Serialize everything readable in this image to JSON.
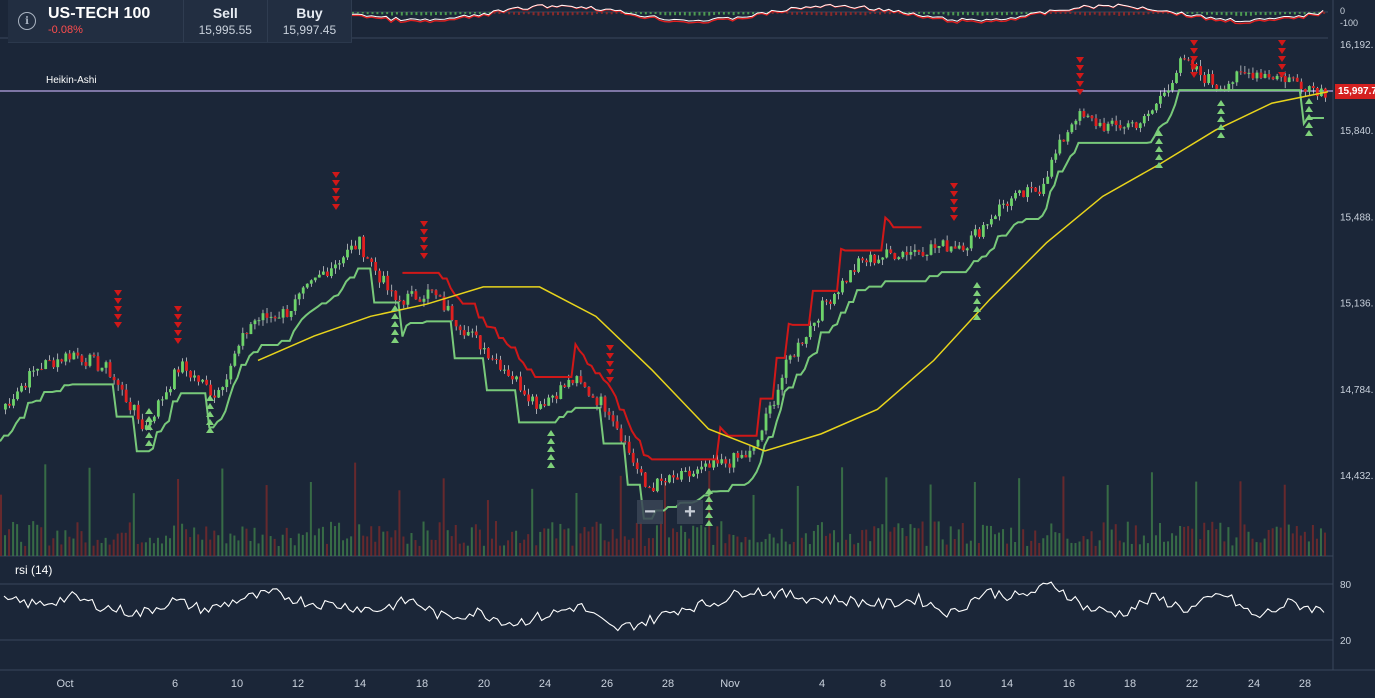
{
  "instrument": {
    "name": "US-TECH 100",
    "change": "-0.08%"
  },
  "quotes": {
    "sell": {
      "label": "Sell",
      "value": "15,995.55"
    },
    "buy": {
      "label": "Buy",
      "value": "15,997.45"
    }
  },
  "indicators": {
    "main_label": "Heikin-Ashi",
    "rsi_label": "rsi (14)"
  },
  "current_price_tag": "15,997.7",
  "zoom": {
    "out": "−",
    "in": "+"
  },
  "colors": {
    "background": "#1b2638",
    "up": "#6dd36a",
    "down": "#e02020",
    "ma": "#e8d41c",
    "price_line": "#b9a6e6"
  },
  "icons": {
    "info": "info-icon",
    "zoom_out": "minus-icon",
    "zoom_in": "plus-icon"
  },
  "chart_data": {
    "type": "line",
    "title": "",
    "price_axis": [
      "16,192.",
      "15,840.",
      "15,488.",
      "15,136.",
      "14,784.",
      "14,432."
    ],
    "top_osc_axis": [
      "0",
      "-100"
    ],
    "rsi_axis": [
      "80",
      "20"
    ],
    "x_ticks": [
      "Oct",
      "6",
      "10",
      "12",
      "14",
      "18",
      "20",
      "24",
      "26",
      "28",
      "Nov",
      "4",
      "8",
      "10",
      "14",
      "16",
      "18",
      "22",
      "24",
      "28"
    ],
    "series": [
      {
        "values": [
          14700,
          14870,
          14930,
          14860,
          14620,
          14880,
          14760,
          15060,
          15100,
          15260,
          15380,
          15140,
          15180,
          15020,
          14880,
          14720,
          14820,
          14700,
          14380,
          14420,
          14470,
          14520,
          14900,
          15130,
          15300,
          15340,
          15360,
          15380,
          15540,
          15600,
          15900,
          15850,
          15880,
          16120,
          16020,
          16080,
          16050,
          15997
        ]
      },
      {
        "name": "",
        "values": [
          14900,
          15000,
          15080,
          15130,
          15200,
          15200,
          15080,
          14860,
          14620,
          14530,
          14600,
          14700,
          14900,
          15150,
          15380,
          15570,
          15700,
          15840,
          15950,
          15997
        ]
      }
    ],
    "rsi": [
      62,
      58,
      66,
      55,
      48,
      62,
      52,
      64,
      70,
      60,
      57,
      52,
      63,
      44,
      50,
      38,
      46,
      57,
      31,
      40,
      54,
      60,
      74,
      69,
      64,
      62,
      58,
      64,
      48,
      72,
      66,
      80,
      54,
      48,
      66,
      52,
      70,
      44,
      60,
      51
    ]
  }
}
